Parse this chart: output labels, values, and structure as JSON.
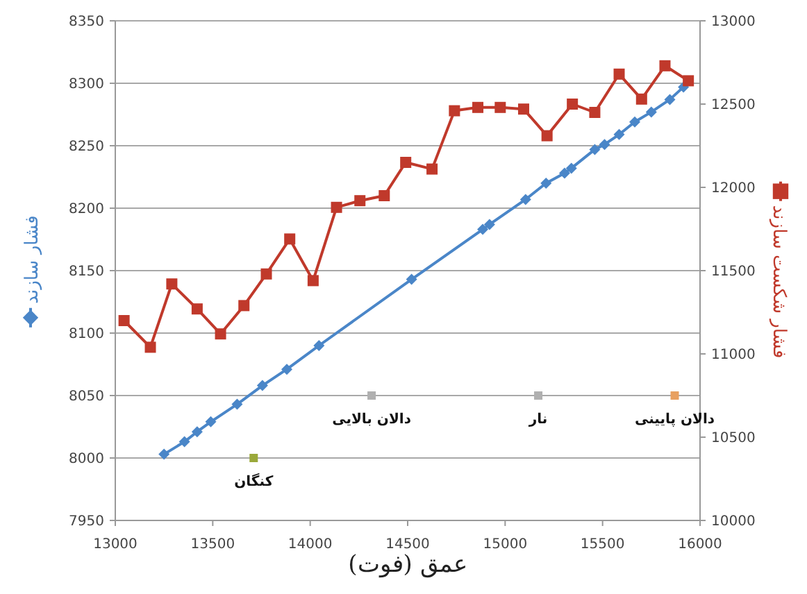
{
  "chart_data": {
    "type": "line",
    "xlabel": "عمق (فوت)",
    "xlim": [
      13000,
      16000
    ],
    "xticks": [
      13000,
      13500,
      14000,
      14500,
      15000,
      15500,
      16000
    ],
    "ylim": [
      7950,
      8350
    ],
    "yticks": [
      7950,
      8000,
      8050,
      8100,
      8150,
      8200,
      8250,
      8300,
      8350
    ],
    "y2lim": [
      10000,
      13000
    ],
    "y2ticks": [
      10000,
      10500,
      11000,
      11500,
      12000,
      12500,
      13000
    ],
    "grid": "y",
    "series": [
      {
        "name": "فشار سازند",
        "color": "#4a86c8",
        "marker": "diamond",
        "axis": "y",
        "x": [
          13250,
          13355,
          13420,
          13490,
          13625,
          13755,
          13880,
          14045,
          14520,
          14885,
          14920,
          15105,
          15210,
          15305,
          15340,
          15460,
          15510,
          15585,
          15665,
          15750,
          15845,
          15915
        ],
        "values": [
          8003,
          8013,
          8021,
          8029,
          8043,
          8058,
          8071,
          8090,
          8143,
          8183,
          8187,
          8207,
          8220,
          8228,
          8232,
          8247,
          8251,
          8259,
          8269,
          8277,
          8287,
          8297
        ]
      },
      {
        "name": "فشار شکست سازند",
        "color": "#c0392b",
        "marker": "square",
        "axis": "y2",
        "x": [
          13045,
          13180,
          13290,
          13420,
          13540,
          13660,
          13775,
          13895,
          14015,
          14135,
          14255,
          14380,
          14490,
          14625,
          14740,
          14860,
          14975,
          15095,
          15215,
          15345,
          15460,
          15585,
          15700,
          15820,
          15940
        ],
        "values": [
          11200,
          11040,
          11420,
          11270,
          11120,
          11290,
          11480,
          11690,
          11440,
          11880,
          11920,
          11950,
          12150,
          12110,
          12460,
          12480,
          12480,
          12470,
          12310,
          12500,
          12450,
          12680,
          12530,
          12730,
          12640
        ]
      },
      {
        "type": "scatter",
        "marker": "square",
        "axis": "y",
        "x": [
          13710,
          14315,
          15170,
          15870
        ],
        "values": [
          8000,
          8050,
          8050,
          8050
        ],
        "colors": [
          "#9aa83a",
          "#b0b0b0",
          "#b0b0b0",
          "#e8a060"
        ],
        "value_labels": [
          "کنگان",
          "دالان بالایی",
          "نار",
          "دالان پایینی"
        ]
      }
    ]
  }
}
